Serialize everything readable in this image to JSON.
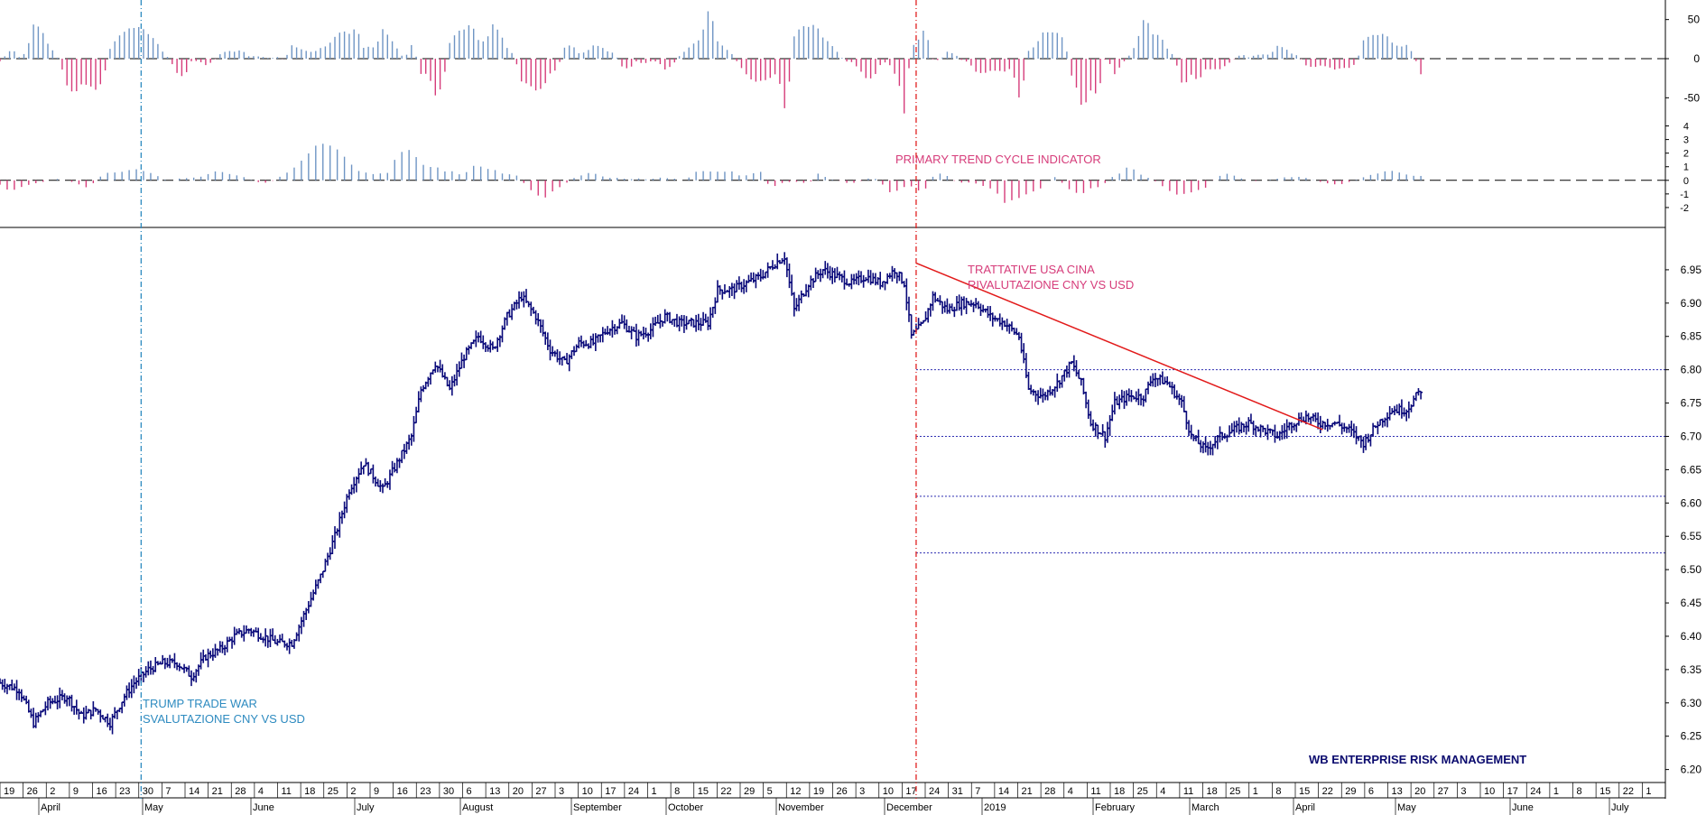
{
  "colors": {
    "price": "#0a0a7a",
    "hist_pos": "#6f95c4",
    "hist_neg": "#d63c7a",
    "trendline": "#e21a1a",
    "vline_blue": "#2e8bc0",
    "vline_red": "#e02020",
    "level": "#2a2ab0"
  },
  "annotations": {
    "trade_war_1": "TRUMP TRADE WAR",
    "trade_war_2": "SVALUTAZIONE CNY VS USD",
    "talks_1": "TRATTATIVE USA CINA",
    "talks_2": "RIVALUTAZIONE CNY VS USD",
    "cycle_indicator": "PRIMARY TREND CYCLE INDICATOR",
    "credit": "WB ENTERPRISE RISK MANAGEMENT"
  },
  "chart_data": {
    "type": "ohlc",
    "panels": [
      {
        "name": "upper-oscillator",
        "ylim": [
          -75,
          75
        ],
        "ticks": [
          50,
          0,
          -50
        ]
      },
      {
        "name": "cycle-indicator",
        "ylim": [
          -3,
          4.5
        ],
        "ticks": [
          4,
          3,
          2,
          1,
          0,
          -1,
          -2
        ]
      },
      {
        "name": "price",
        "ylim": [
          6.19,
          7.0
        ],
        "ticks": [
          6.95,
          6.9,
          6.85,
          6.8,
          6.75,
          6.7,
          6.65,
          6.6,
          6.55,
          6.5,
          6.45,
          6.4,
          6.35,
          6.3,
          6.25,
          6.2
        ],
        "tick_labels": [
          "6.95",
          "6.90",
          "6.85",
          "6.80",
          "6.75",
          "6.70",
          "6.65",
          "6.60",
          "6.55",
          "6.50",
          "6.45",
          "6.40",
          "6.35",
          "6.30",
          "6.25",
          "6.20"
        ]
      }
    ],
    "date_ticks": [
      "19",
      "26",
      "2",
      "9",
      "16",
      "23",
      "30",
      "7",
      "14",
      "21",
      "28",
      "4",
      "11",
      "18",
      "25",
      "2",
      "9",
      "16",
      "23",
      "30",
      "6",
      "13",
      "20",
      "27",
      "3",
      "10",
      "17",
      "24",
      "1",
      "8",
      "15",
      "22",
      "29",
      "5",
      "12",
      "19",
      "26",
      "3",
      "10",
      "17",
      "24",
      "31",
      "7",
      "14",
      "21",
      "28",
      "4",
      "11",
      "18",
      "25",
      "4",
      "11",
      "18",
      "25",
      "1",
      "8",
      "15",
      "22",
      "29",
      "6",
      "13",
      "20",
      "27",
      "3",
      "10",
      "17",
      "24",
      "1",
      "8",
      "15",
      "22",
      "1"
    ],
    "months": [
      "April",
      "May",
      "June",
      "July",
      "August",
      "September",
      "October",
      "November",
      "December",
      "2019",
      "February",
      "March",
      "April",
      "May",
      "June",
      "July"
    ],
    "price_anchors": [
      {
        "t": 0,
        "v": 6.33
      },
      {
        "t": 8,
        "v": 6.32
      },
      {
        "t": 14,
        "v": 6.27
      },
      {
        "t": 20,
        "v": 6.3
      },
      {
        "t": 28,
        "v": 6.31
      },
      {
        "t": 34,
        "v": 6.28
      },
      {
        "t": 40,
        "v": 6.29
      },
      {
        "t": 46,
        "v": 6.27
      },
      {
        "t": 52,
        "v": 6.31
      },
      {
        "t": 56,
        "v": 6.33
      },
      {
        "t": 62,
        "v": 6.35
      },
      {
        "t": 68,
        "v": 6.36
      },
      {
        "t": 74,
        "v": 6.36
      },
      {
        "t": 80,
        "v": 6.34
      },
      {
        "t": 86,
        "v": 6.37
      },
      {
        "t": 92,
        "v": 6.38
      },
      {
        "t": 98,
        "v": 6.4
      },
      {
        "t": 104,
        "v": 6.41
      },
      {
        "t": 110,
        "v": 6.4
      },
      {
        "t": 116,
        "v": 6.39
      },
      {
        "t": 122,
        "v": 6.39
      },
      {
        "t": 128,
        "v": 6.44
      },
      {
        "t": 134,
        "v": 6.49
      },
      {
        "t": 140,
        "v": 6.55
      },
      {
        "t": 146,
        "v": 6.62
      },
      {
        "t": 152,
        "v": 6.66
      },
      {
        "t": 156,
        "v": 6.64
      },
      {
        "t": 160,
        "v": 6.62
      },
      {
        "t": 166,
        "v": 6.66
      },
      {
        "t": 172,
        "v": 6.7
      },
      {
        "t": 176,
        "v": 6.77
      },
      {
        "t": 182,
        "v": 6.81
      },
      {
        "t": 188,
        "v": 6.77
      },
      {
        "t": 194,
        "v": 6.82
      },
      {
        "t": 200,
        "v": 6.85
      },
      {
        "t": 206,
        "v": 6.83
      },
      {
        "t": 212,
        "v": 6.88
      },
      {
        "t": 218,
        "v": 6.91
      },
      {
        "t": 224,
        "v": 6.88
      },
      {
        "t": 230,
        "v": 6.83
      },
      {
        "t": 236,
        "v": 6.81
      },
      {
        "t": 242,
        "v": 6.84
      },
      {
        "t": 248,
        "v": 6.84
      },
      {
        "t": 254,
        "v": 6.86
      },
      {
        "t": 260,
        "v": 6.87
      },
      {
        "t": 266,
        "v": 6.85
      },
      {
        "t": 272,
        "v": 6.86
      },
      {
        "t": 278,
        "v": 6.88
      },
      {
        "t": 284,
        "v": 6.87
      },
      {
        "t": 290,
        "v": 6.87
      },
      {
        "t": 296,
        "v": 6.87
      },
      {
        "t": 300,
        "v": 6.92
      },
      {
        "t": 306,
        "v": 6.92
      },
      {
        "t": 312,
        "v": 6.93
      },
      {
        "t": 318,
        "v": 6.94
      },
      {
        "t": 324,
        "v": 6.96
      },
      {
        "t": 328,
        "v": 6.97
      },
      {
        "t": 332,
        "v": 6.89
      },
      {
        "t": 338,
        "v": 6.93
      },
      {
        "t": 344,
        "v": 6.95
      },
      {
        "t": 350,
        "v": 6.94
      },
      {
        "t": 356,
        "v": 6.93
      },
      {
        "t": 362,
        "v": 6.94
      },
      {
        "t": 368,
        "v": 6.93
      },
      {
        "t": 374,
        "v": 6.95
      },
      {
        "t": 378,
        "v": 6.93
      },
      {
        "t": 381,
        "v": 6.85
      },
      {
        "t": 386,
        "v": 6.87
      },
      {
        "t": 390,
        "v": 6.91
      },
      {
        "t": 396,
        "v": 6.89
      },
      {
        "t": 402,
        "v": 6.9
      },
      {
        "t": 408,
        "v": 6.9
      },
      {
        "t": 414,
        "v": 6.88
      },
      {
        "t": 420,
        "v": 6.87
      },
      {
        "t": 426,
        "v": 6.85
      },
      {
        "t": 430,
        "v": 6.77
      },
      {
        "t": 436,
        "v": 6.76
      },
      {
        "t": 442,
        "v": 6.78
      },
      {
        "t": 448,
        "v": 6.81
      },
      {
        "t": 452,
        "v": 6.78
      },
      {
        "t": 456,
        "v": 6.72
      },
      {
        "t": 462,
        "v": 6.7
      },
      {
        "t": 466,
        "v": 6.75
      },
      {
        "t": 472,
        "v": 6.76
      },
      {
        "t": 478,
        "v": 6.76
      },
      {
        "t": 482,
        "v": 6.79
      },
      {
        "t": 488,
        "v": 6.78
      },
      {
        "t": 494,
        "v": 6.75
      },
      {
        "t": 498,
        "v": 6.7
      },
      {
        "t": 504,
        "v": 6.68
      },
      {
        "t": 510,
        "v": 6.7
      },
      {
        "t": 516,
        "v": 6.71
      },
      {
        "t": 522,
        "v": 6.72
      },
      {
        "t": 528,
        "v": 6.71
      },
      {
        "t": 534,
        "v": 6.7
      },
      {
        "t": 540,
        "v": 6.72
      },
      {
        "t": 546,
        "v": 6.73
      },
      {
        "t": 552,
        "v": 6.72
      },
      {
        "t": 558,
        "v": 6.72
      },
      {
        "t": 564,
        "v": 6.71
      },
      {
        "t": 570,
        "v": 6.69
      },
      {
        "t": 576,
        "v": 6.72
      },
      {
        "t": 582,
        "v": 6.74
      },
      {
        "t": 588,
        "v": 6.74
      },
      {
        "t": 594,
        "v": 6.77
      }
    ],
    "trendline": [
      {
        "t": 383,
        "v": 6.96
      },
      {
        "t": 553,
        "v": 6.71
      }
    ],
    "event_lines": [
      {
        "t": 59,
        "style": "dash-dot",
        "color": "vline_blue"
      },
      {
        "t": 383,
        "style": "dash-dot",
        "color": "vline_red"
      }
    ],
    "levels": [
      6.8,
      6.7,
      6.61,
      6.525
    ]
  }
}
